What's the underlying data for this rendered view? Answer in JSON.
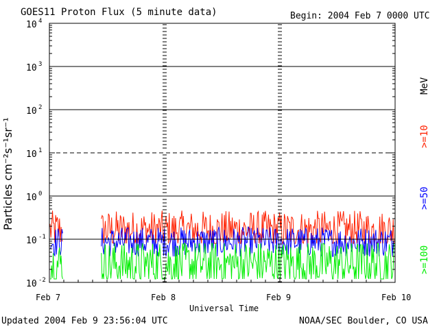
{
  "header": {
    "title": "GOES11 Proton Flux (5 minute data)",
    "begin": "Begin: 2004 Feb 7 0000 UTC"
  },
  "footer": {
    "updated": "Updated 2004 Feb  9 23:56:04 UTC",
    "credit": "NOAA/SEC Boulder, CO USA"
  },
  "colors": {
    "ge10": "#ff2000",
    "ge50": "#0000ff",
    "ge100": "#00ee00",
    "axis": "#000000",
    "background": "#ffffff"
  },
  "chart_data": {
    "type": "line",
    "title": "GOES11 Proton Flux (5 minute data)",
    "xlabel": "Universal Time",
    "ylabel": "Particles cm⁻²s⁻¹sr⁻¹",
    "y_scale": "log",
    "ylim": [
      0.01,
      10000
    ],
    "y_ticks": [
      {
        "value": 0.01,
        "base": "10",
        "exp": "-2"
      },
      {
        "value": 0.1,
        "base": "10",
        "exp": "-1"
      },
      {
        "value": 1,
        "base": "10",
        "exp": "0"
      },
      {
        "value": 10,
        "base": "10",
        "exp": "1"
      },
      {
        "value": 100,
        "base": "10",
        "exp": "2"
      },
      {
        "value": 1000,
        "base": "10",
        "exp": "3"
      },
      {
        "value": 10000,
        "base": "10",
        "exp": "4"
      }
    ],
    "x_range_days": [
      0,
      3
    ],
    "x_ticks": [
      "Feb 7",
      "Feb 8",
      "Feb 9",
      "Feb 10"
    ],
    "data_gap_days": [
      0.12,
      0.45
    ],
    "unit_label": "MeV",
    "series": [
      {
        "name": ">=10",
        "color": "#ff2000",
        "typical": 0.12,
        "range": [
          0.08,
          0.55
        ]
      },
      {
        "name": ">=50",
        "color": "#0000ff",
        "typical": 0.08,
        "range": [
          0.04,
          0.2
        ]
      },
      {
        "name": ">=100",
        "color": "#00ee00",
        "typical": 0.03,
        "range": [
          0.012,
          0.08
        ]
      }
    ],
    "grid": "horizontal lines at decades, dashed at 10^1"
  }
}
